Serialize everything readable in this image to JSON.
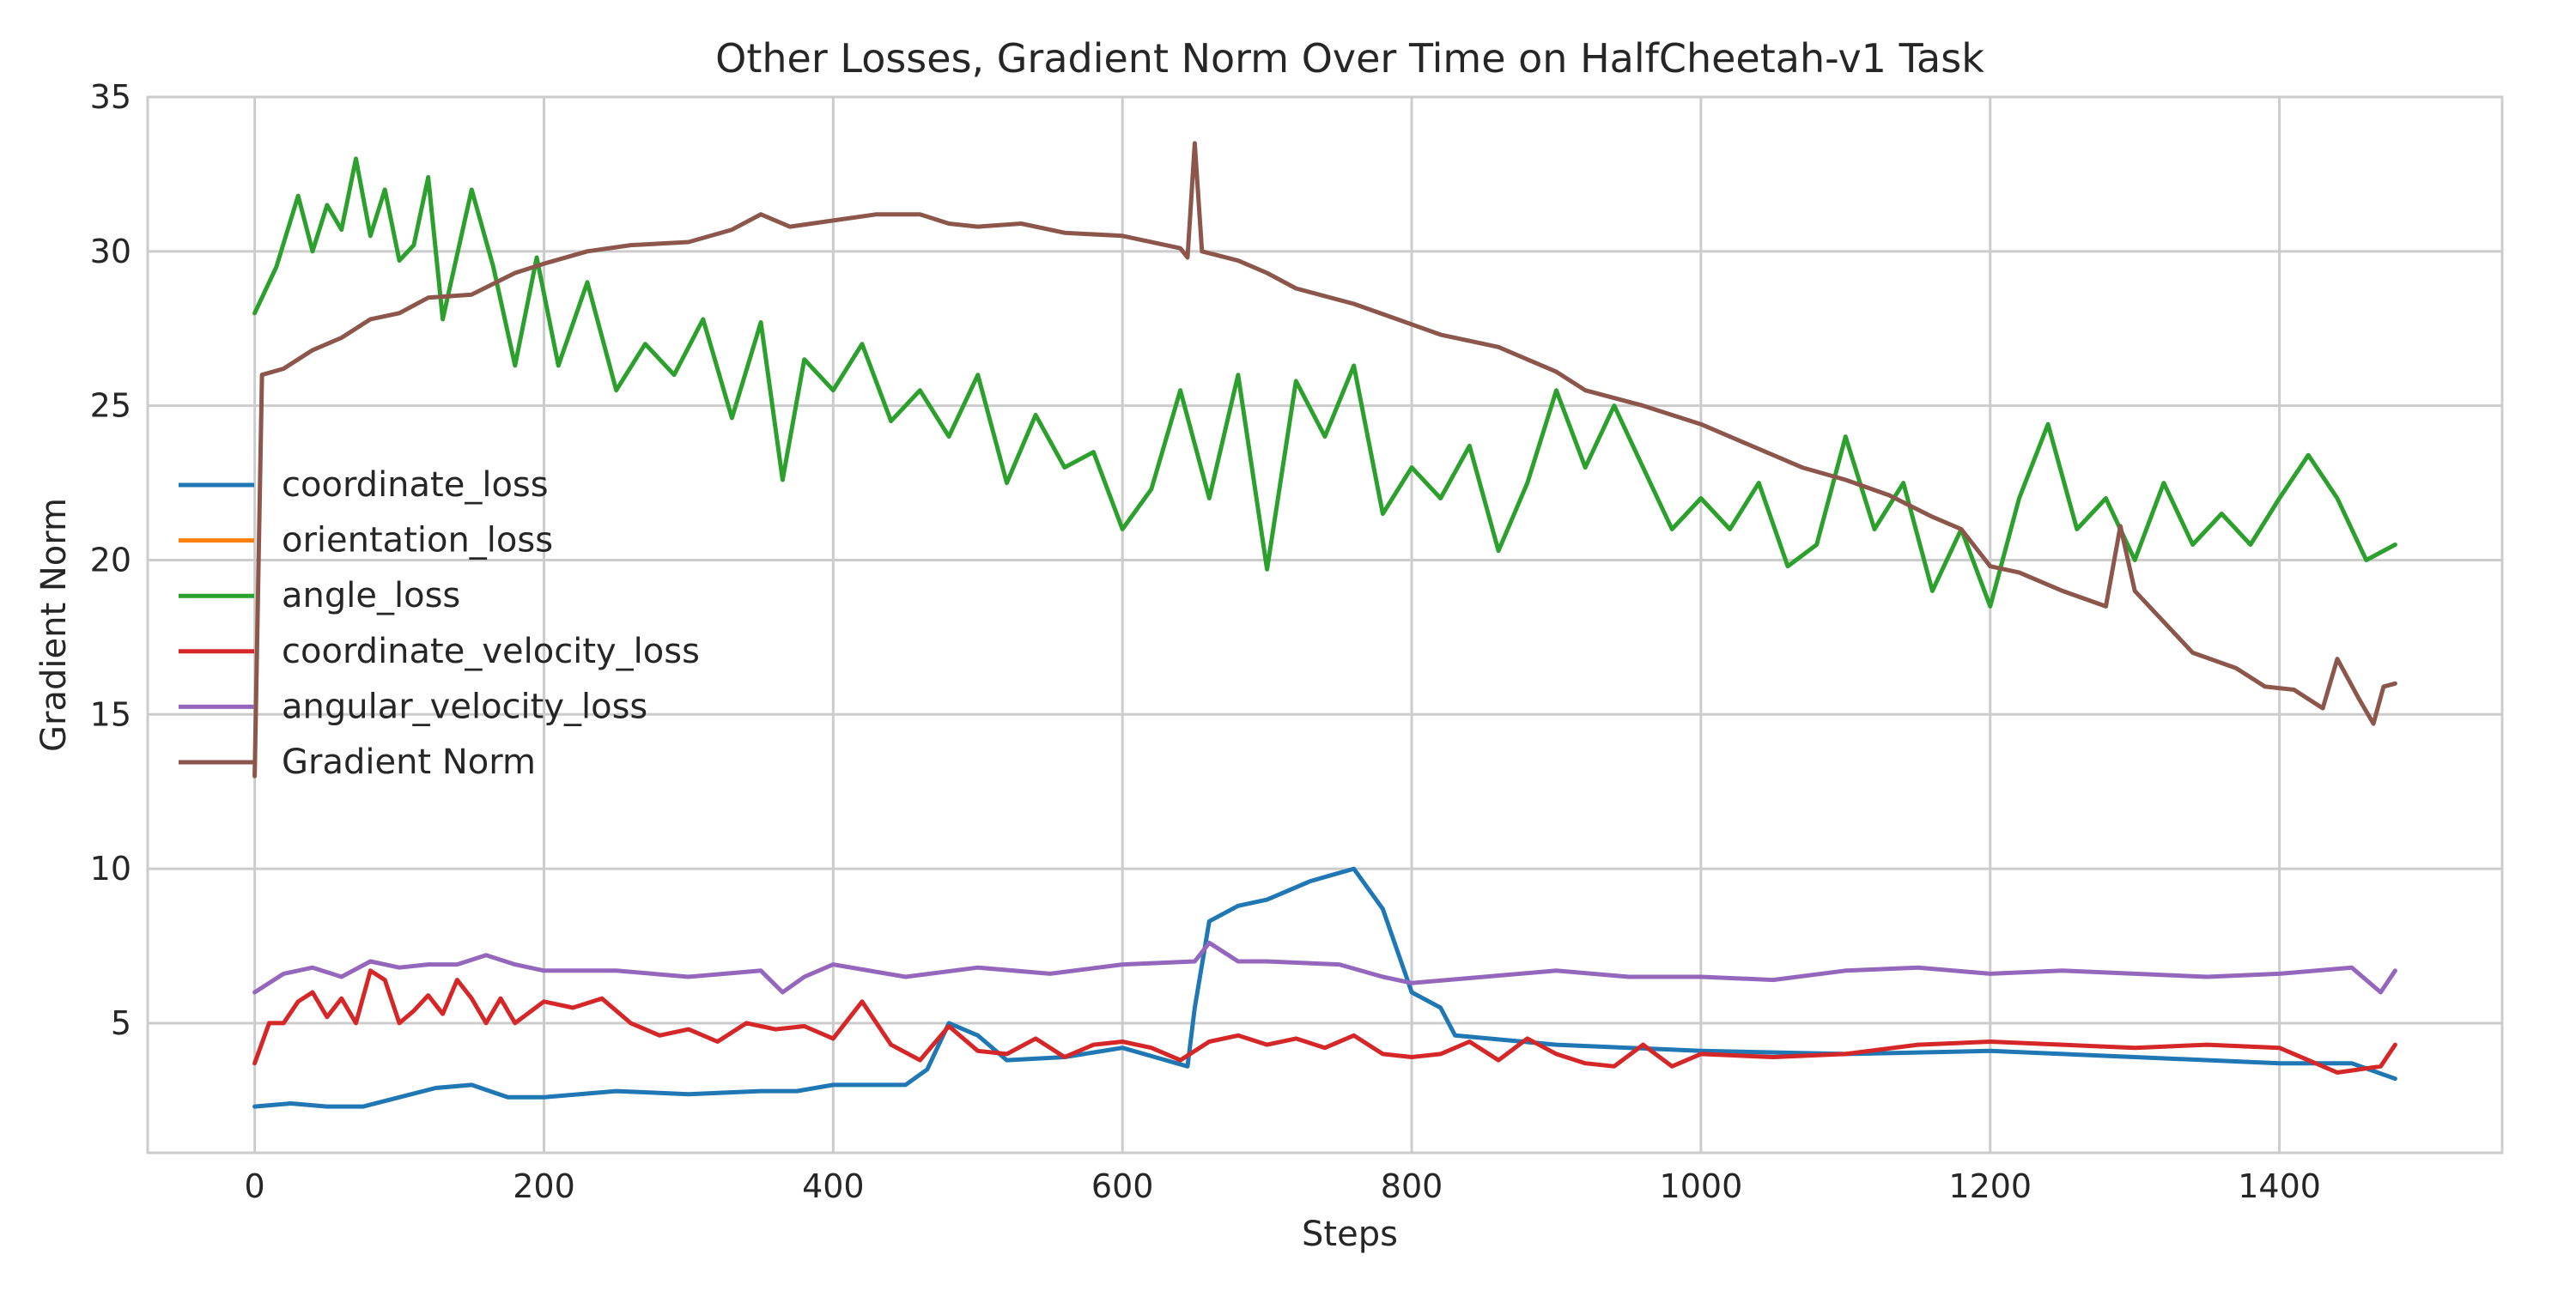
{
  "chart_data": {
    "type": "line",
    "title": "Other Losses, Gradient Norm Over Time on HalfCheetah-v1 Task",
    "xlabel": "Steps",
    "ylabel": "Gradient Norm",
    "xlim": [
      -74,
      1554
    ],
    "ylim": [
      0.8,
      35.0
    ],
    "xticks": [
      0,
      200,
      400,
      600,
      800,
      1000,
      1200,
      1400
    ],
    "yticks": [
      5,
      10,
      15,
      20,
      25,
      30,
      35
    ],
    "grid": true,
    "legend_position": "center-left",
    "series": [
      {
        "name": "coordinate_loss",
        "color": "#1f77b4",
        "points": [
          [
            0,
            2.3
          ],
          [
            25,
            2.4
          ],
          [
            50,
            2.3
          ],
          [
            75,
            2.3
          ],
          [
            100,
            2.6
          ],
          [
            125,
            2.9
          ],
          [
            150,
            3.0
          ],
          [
            175,
            2.6
          ],
          [
            200,
            2.6
          ],
          [
            250,
            2.8
          ],
          [
            300,
            2.7
          ],
          [
            350,
            2.8
          ],
          [
            375,
            2.8
          ],
          [
            400,
            3.0
          ],
          [
            450,
            3.0
          ],
          [
            465,
            3.5
          ],
          [
            480,
            5.0
          ],
          [
            500,
            4.6
          ],
          [
            520,
            3.8
          ],
          [
            560,
            3.9
          ],
          [
            600,
            4.2
          ],
          [
            630,
            3.8
          ],
          [
            645,
            3.6
          ],
          [
            650,
            5.5
          ],
          [
            660,
            8.3
          ],
          [
            680,
            8.8
          ],
          [
            700,
            9.0
          ],
          [
            730,
            9.6
          ],
          [
            760,
            10.0
          ],
          [
            780,
            8.7
          ],
          [
            800,
            6.0
          ],
          [
            820,
            5.5
          ],
          [
            830,
            4.6
          ],
          [
            900,
            4.3
          ],
          [
            1000,
            4.1
          ],
          [
            1100,
            4.0
          ],
          [
            1200,
            4.1
          ],
          [
            1300,
            3.9
          ],
          [
            1400,
            3.7
          ],
          [
            1450,
            3.7
          ],
          [
            1480,
            3.2
          ]
        ]
      },
      {
        "name": "orientation_loss",
        "color": "#ff7f0e",
        "points": []
      },
      {
        "name": "angle_loss",
        "color": "#2ca02c",
        "points": [
          [
            0,
            28.0
          ],
          [
            15,
            29.5
          ],
          [
            30,
            31.8
          ],
          [
            40,
            30.0
          ],
          [
            50,
            31.5
          ],
          [
            60,
            30.7
          ],
          [
            70,
            33.0
          ],
          [
            80,
            30.5
          ],
          [
            90,
            32.0
          ],
          [
            100,
            29.7
          ],
          [
            110,
            30.2
          ],
          [
            120,
            32.4
          ],
          [
            130,
            27.8
          ],
          [
            150,
            32.0
          ],
          [
            165,
            29.5
          ],
          [
            180,
            26.3
          ],
          [
            195,
            29.8
          ],
          [
            210,
            26.3
          ],
          [
            230,
            29.0
          ],
          [
            250,
            25.5
          ],
          [
            270,
            27.0
          ],
          [
            290,
            26.0
          ],
          [
            310,
            27.8
          ],
          [
            330,
            24.6
          ],
          [
            350,
            27.7
          ],
          [
            365,
            22.6
          ],
          [
            380,
            26.5
          ],
          [
            400,
            25.5
          ],
          [
            420,
            27.0
          ],
          [
            440,
            24.5
          ],
          [
            460,
            25.5
          ],
          [
            480,
            24.0
          ],
          [
            500,
            26.0
          ],
          [
            520,
            22.5
          ],
          [
            540,
            24.7
          ],
          [
            560,
            23.0
          ],
          [
            580,
            23.5
          ],
          [
            600,
            21.0
          ],
          [
            620,
            22.3
          ],
          [
            640,
            25.5
          ],
          [
            660,
            22.0
          ],
          [
            680,
            26.0
          ],
          [
            700,
            19.7
          ],
          [
            720,
            25.8
          ],
          [
            740,
            24.0
          ],
          [
            760,
            26.3
          ],
          [
            780,
            21.5
          ],
          [
            800,
            23.0
          ],
          [
            820,
            22.0
          ],
          [
            840,
            23.7
          ],
          [
            860,
            20.3
          ],
          [
            880,
            22.5
          ],
          [
            900,
            25.5
          ],
          [
            920,
            23.0
          ],
          [
            940,
            25.0
          ],
          [
            960,
            23.0
          ],
          [
            980,
            21.0
          ],
          [
            1000,
            22.0
          ],
          [
            1020,
            21.0
          ],
          [
            1040,
            22.5
          ],
          [
            1060,
            19.8
          ],
          [
            1080,
            20.5
          ],
          [
            1100,
            24.0
          ],
          [
            1120,
            21.0
          ],
          [
            1140,
            22.5
          ],
          [
            1160,
            19.0
          ],
          [
            1180,
            21.0
          ],
          [
            1200,
            18.5
          ],
          [
            1220,
            22.0
          ],
          [
            1240,
            24.4
          ],
          [
            1260,
            21.0
          ],
          [
            1280,
            22.0
          ],
          [
            1300,
            20.0
          ],
          [
            1320,
            22.5
          ],
          [
            1340,
            20.5
          ],
          [
            1360,
            21.5
          ],
          [
            1380,
            20.5
          ],
          [
            1400,
            22.0
          ],
          [
            1420,
            23.4
          ],
          [
            1440,
            22.0
          ],
          [
            1460,
            20.0
          ],
          [
            1480,
            20.5
          ]
        ]
      },
      {
        "name": "coordinate_velocity_loss",
        "color": "#d62728",
        "points": [
          [
            0,
            3.7
          ],
          [
            10,
            5.0
          ],
          [
            20,
            5.0
          ],
          [
            30,
            5.7
          ],
          [
            40,
            6.0
          ],
          [
            50,
            5.2
          ],
          [
            60,
            5.8
          ],
          [
            70,
            5.0
          ],
          [
            80,
            6.7
          ],
          [
            90,
            6.4
          ],
          [
            100,
            5.0
          ],
          [
            110,
            5.4
          ],
          [
            120,
            5.9
          ],
          [
            130,
            5.3
          ],
          [
            140,
            6.4
          ],
          [
            150,
            5.8
          ],
          [
            160,
            5.0
          ],
          [
            170,
            5.8
          ],
          [
            180,
            5.0
          ],
          [
            200,
            5.7
          ],
          [
            220,
            5.5
          ],
          [
            240,
            5.8
          ],
          [
            260,
            5.0
          ],
          [
            280,
            4.6
          ],
          [
            300,
            4.8
          ],
          [
            320,
            4.4
          ],
          [
            340,
            5.0
          ],
          [
            360,
            4.8
          ],
          [
            380,
            4.9
          ],
          [
            400,
            4.5
          ],
          [
            420,
            5.7
          ],
          [
            440,
            4.3
          ],
          [
            460,
            3.8
          ],
          [
            480,
            4.9
          ],
          [
            500,
            4.1
          ],
          [
            520,
            4.0
          ],
          [
            540,
            4.5
          ],
          [
            560,
            3.9
          ],
          [
            580,
            4.3
          ],
          [
            600,
            4.4
          ],
          [
            620,
            4.2
          ],
          [
            640,
            3.8
          ],
          [
            660,
            4.4
          ],
          [
            680,
            4.6
          ],
          [
            700,
            4.3
          ],
          [
            720,
            4.5
          ],
          [
            740,
            4.2
          ],
          [
            760,
            4.6
          ],
          [
            780,
            4.0
          ],
          [
            800,
            3.9
          ],
          [
            820,
            4.0
          ],
          [
            840,
            4.4
          ],
          [
            860,
            3.8
          ],
          [
            880,
            4.5
          ],
          [
            900,
            4.0
          ],
          [
            920,
            3.7
          ],
          [
            940,
            3.6
          ],
          [
            960,
            4.3
          ],
          [
            980,
            3.6
          ],
          [
            1000,
            4.0
          ],
          [
            1050,
            3.9
          ],
          [
            1100,
            4.0
          ],
          [
            1150,
            4.3
          ],
          [
            1200,
            4.4
          ],
          [
            1250,
            4.3
          ],
          [
            1300,
            4.2
          ],
          [
            1350,
            4.3
          ],
          [
            1400,
            4.2
          ],
          [
            1440,
            3.4
          ],
          [
            1470,
            3.6
          ],
          [
            1480,
            4.3
          ]
        ]
      },
      {
        "name": "angular_velocity_loss",
        "color": "#9467bd",
        "points": [
          [
            0,
            6.0
          ],
          [
            20,
            6.6
          ],
          [
            40,
            6.8
          ],
          [
            60,
            6.5
          ],
          [
            80,
            7.0
          ],
          [
            100,
            6.8
          ],
          [
            120,
            6.9
          ],
          [
            140,
            6.9
          ],
          [
            160,
            7.2
          ],
          [
            180,
            6.9
          ],
          [
            200,
            6.7
          ],
          [
            250,
            6.7
          ],
          [
            300,
            6.5
          ],
          [
            350,
            6.7
          ],
          [
            365,
            6.0
          ],
          [
            380,
            6.5
          ],
          [
            400,
            6.9
          ],
          [
            450,
            6.5
          ],
          [
            500,
            6.8
          ],
          [
            550,
            6.6
          ],
          [
            600,
            6.9
          ],
          [
            650,
            7.0
          ],
          [
            660,
            7.6
          ],
          [
            680,
            7.0
          ],
          [
            700,
            7.0
          ],
          [
            750,
            6.9
          ],
          [
            780,
            6.5
          ],
          [
            800,
            6.3
          ],
          [
            850,
            6.5
          ],
          [
            900,
            6.7
          ],
          [
            950,
            6.5
          ],
          [
            1000,
            6.5
          ],
          [
            1050,
            6.4
          ],
          [
            1100,
            6.7
          ],
          [
            1150,
            6.8
          ],
          [
            1200,
            6.6
          ],
          [
            1250,
            6.7
          ],
          [
            1300,
            6.6
          ],
          [
            1350,
            6.5
          ],
          [
            1400,
            6.6
          ],
          [
            1450,
            6.8
          ],
          [
            1470,
            6.0
          ],
          [
            1480,
            6.7
          ]
        ]
      },
      {
        "name": "Gradient Norm",
        "color": "#8c564b",
        "points": [
          [
            0,
            13.0
          ],
          [
            5,
            26.0
          ],
          [
            20,
            26.2
          ],
          [
            40,
            26.8
          ],
          [
            60,
            27.2
          ],
          [
            80,
            27.8
          ],
          [
            100,
            28.0
          ],
          [
            120,
            28.5
          ],
          [
            150,
            28.6
          ],
          [
            180,
            29.3
          ],
          [
            200,
            29.6
          ],
          [
            230,
            30.0
          ],
          [
            260,
            30.2
          ],
          [
            300,
            30.3
          ],
          [
            330,
            30.7
          ],
          [
            350,
            31.2
          ],
          [
            370,
            30.8
          ],
          [
            400,
            31.0
          ],
          [
            430,
            31.2
          ],
          [
            460,
            31.2
          ],
          [
            480,
            30.9
          ],
          [
            500,
            30.8
          ],
          [
            530,
            30.9
          ],
          [
            560,
            30.6
          ],
          [
            600,
            30.5
          ],
          [
            640,
            30.1
          ],
          [
            645,
            29.8
          ],
          [
            650,
            33.5
          ],
          [
            655,
            30.0
          ],
          [
            680,
            29.7
          ],
          [
            700,
            29.3
          ],
          [
            720,
            28.8
          ],
          [
            760,
            28.3
          ],
          [
            790,
            27.8
          ],
          [
            820,
            27.3
          ],
          [
            860,
            26.9
          ],
          [
            900,
            26.1
          ],
          [
            920,
            25.5
          ],
          [
            960,
            25.0
          ],
          [
            1000,
            24.4
          ],
          [
            1030,
            23.8
          ],
          [
            1070,
            23.0
          ],
          [
            1100,
            22.6
          ],
          [
            1130,
            22.1
          ],
          [
            1160,
            21.4
          ],
          [
            1180,
            21.0
          ],
          [
            1200,
            19.8
          ],
          [
            1220,
            19.6
          ],
          [
            1250,
            19.0
          ],
          [
            1280,
            18.5
          ],
          [
            1290,
            21.1
          ],
          [
            1300,
            19.0
          ],
          [
            1320,
            18.0
          ],
          [
            1340,
            17.0
          ],
          [
            1370,
            16.5
          ],
          [
            1390,
            15.9
          ],
          [
            1410,
            15.8
          ],
          [
            1430,
            15.2
          ],
          [
            1440,
            16.8
          ],
          [
            1455,
            15.5
          ],
          [
            1465,
            14.7
          ],
          [
            1472,
            15.9
          ],
          [
            1480,
            16.0
          ]
        ]
      }
    ]
  }
}
